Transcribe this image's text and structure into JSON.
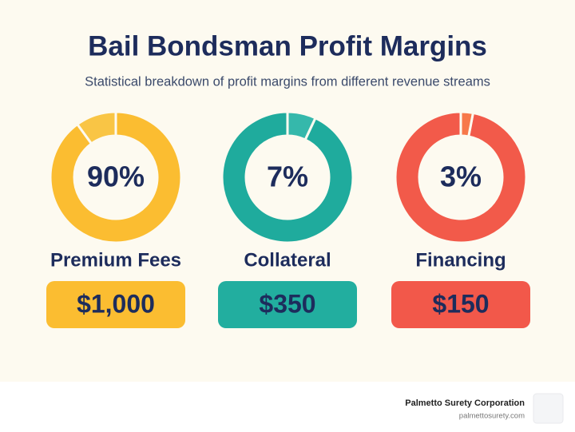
{
  "title": "Bail Bondsman Profit Margins",
  "subtitle": "Statistical breakdown of profit margins from different revenue streams",
  "items": [
    {
      "percent": 90,
      "percent_label": "90%",
      "label": "Premium Fees",
      "amount": "$1,000",
      "color": "#fbbd31",
      "rest_color": "#f9c545",
      "box_color": "#fbbd31"
    },
    {
      "percent": 7,
      "percent_label": "7%",
      "label": "Collateral",
      "amount": "$350",
      "color": "#35b8ab",
      "rest_color": "#1fab9d",
      "box_color": "#22ae9f"
    },
    {
      "percent": 3,
      "percent_label": "3%",
      "label": "Financing",
      "amount": "$150",
      "color": "#f7784a",
      "rest_color": "#f25a4a",
      "box_color": "#f2584a"
    }
  ],
  "footer": {
    "company": "Palmetto Surety Corporation",
    "website": "palmettosurety.com"
  }
}
